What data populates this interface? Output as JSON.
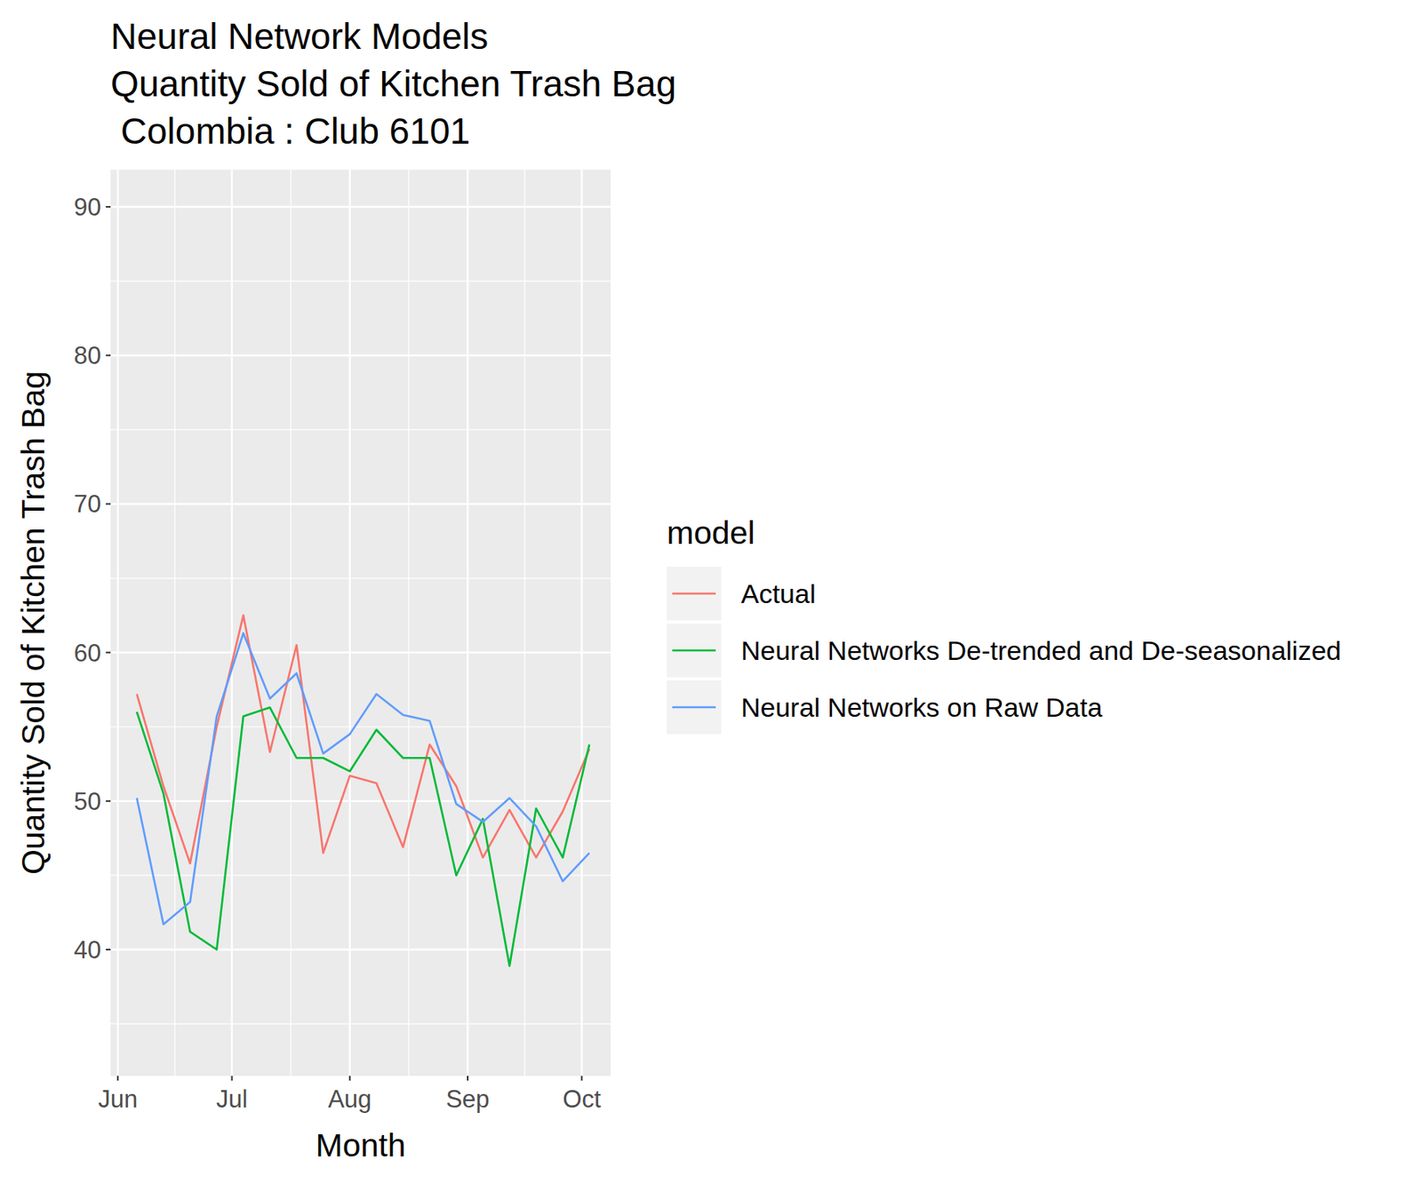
{
  "chart_data": {
    "type": "line",
    "title": "Neural Network Models\nQuantity Sold of Kitchen Trash Bag\n Colombia : Club 6101",
    "x_label": "Month",
    "y_label": "Quantity Sold of Kitchen Trash Bag",
    "legend_title": "model",
    "x": [
      5,
      12,
      19,
      26,
      33,
      40,
      47,
      54,
      61,
      68,
      75,
      82,
      89,
      96,
      103,
      110,
      117,
      124
    ],
    "xlim": [
      -1.9,
      129.6
    ],
    "xticks": [
      {
        "value": 0,
        "label": "Jun"
      },
      {
        "value": 30,
        "label": "Jul"
      },
      {
        "value": 61,
        "label": "Aug"
      },
      {
        "value": 92,
        "label": "Sep"
      },
      {
        "value": 122,
        "label": "Oct"
      }
    ],
    "ylim": [
      31.5,
      92.5
    ],
    "yticks": [
      40,
      50,
      60,
      70,
      80,
      90
    ],
    "grid": true,
    "legend": "right",
    "series": [
      {
        "name": "Actual",
        "color": "#F8766D",
        "values": [
          57.2,
          51.0,
          45.8,
          55.0,
          62.5,
          53.3,
          60.5,
          46.5,
          51.7,
          51.2,
          46.9,
          53.8,
          51.0,
          46.2,
          49.4,
          46.2,
          49.3,
          53.5
        ]
      },
      {
        "name": "Neural Networks De-trended and De-seasonalized",
        "color": "#00BA38",
        "values": [
          56.0,
          50.5,
          41.2,
          40.0,
          55.7,
          56.3,
          52.9,
          52.9,
          52.0,
          54.8,
          52.9,
          52.9,
          45.0,
          48.8,
          38.9,
          49.5,
          46.2,
          53.8
        ]
      },
      {
        "name": "Neural Networks on Raw Data",
        "color": "#619CFF",
        "values": [
          50.2,
          41.7,
          43.2,
          55.7,
          61.3,
          56.9,
          58.6,
          53.2,
          54.5,
          57.2,
          55.8,
          55.4,
          49.8,
          48.6,
          50.2,
          48.3,
          44.6,
          46.5
        ]
      }
    ]
  }
}
